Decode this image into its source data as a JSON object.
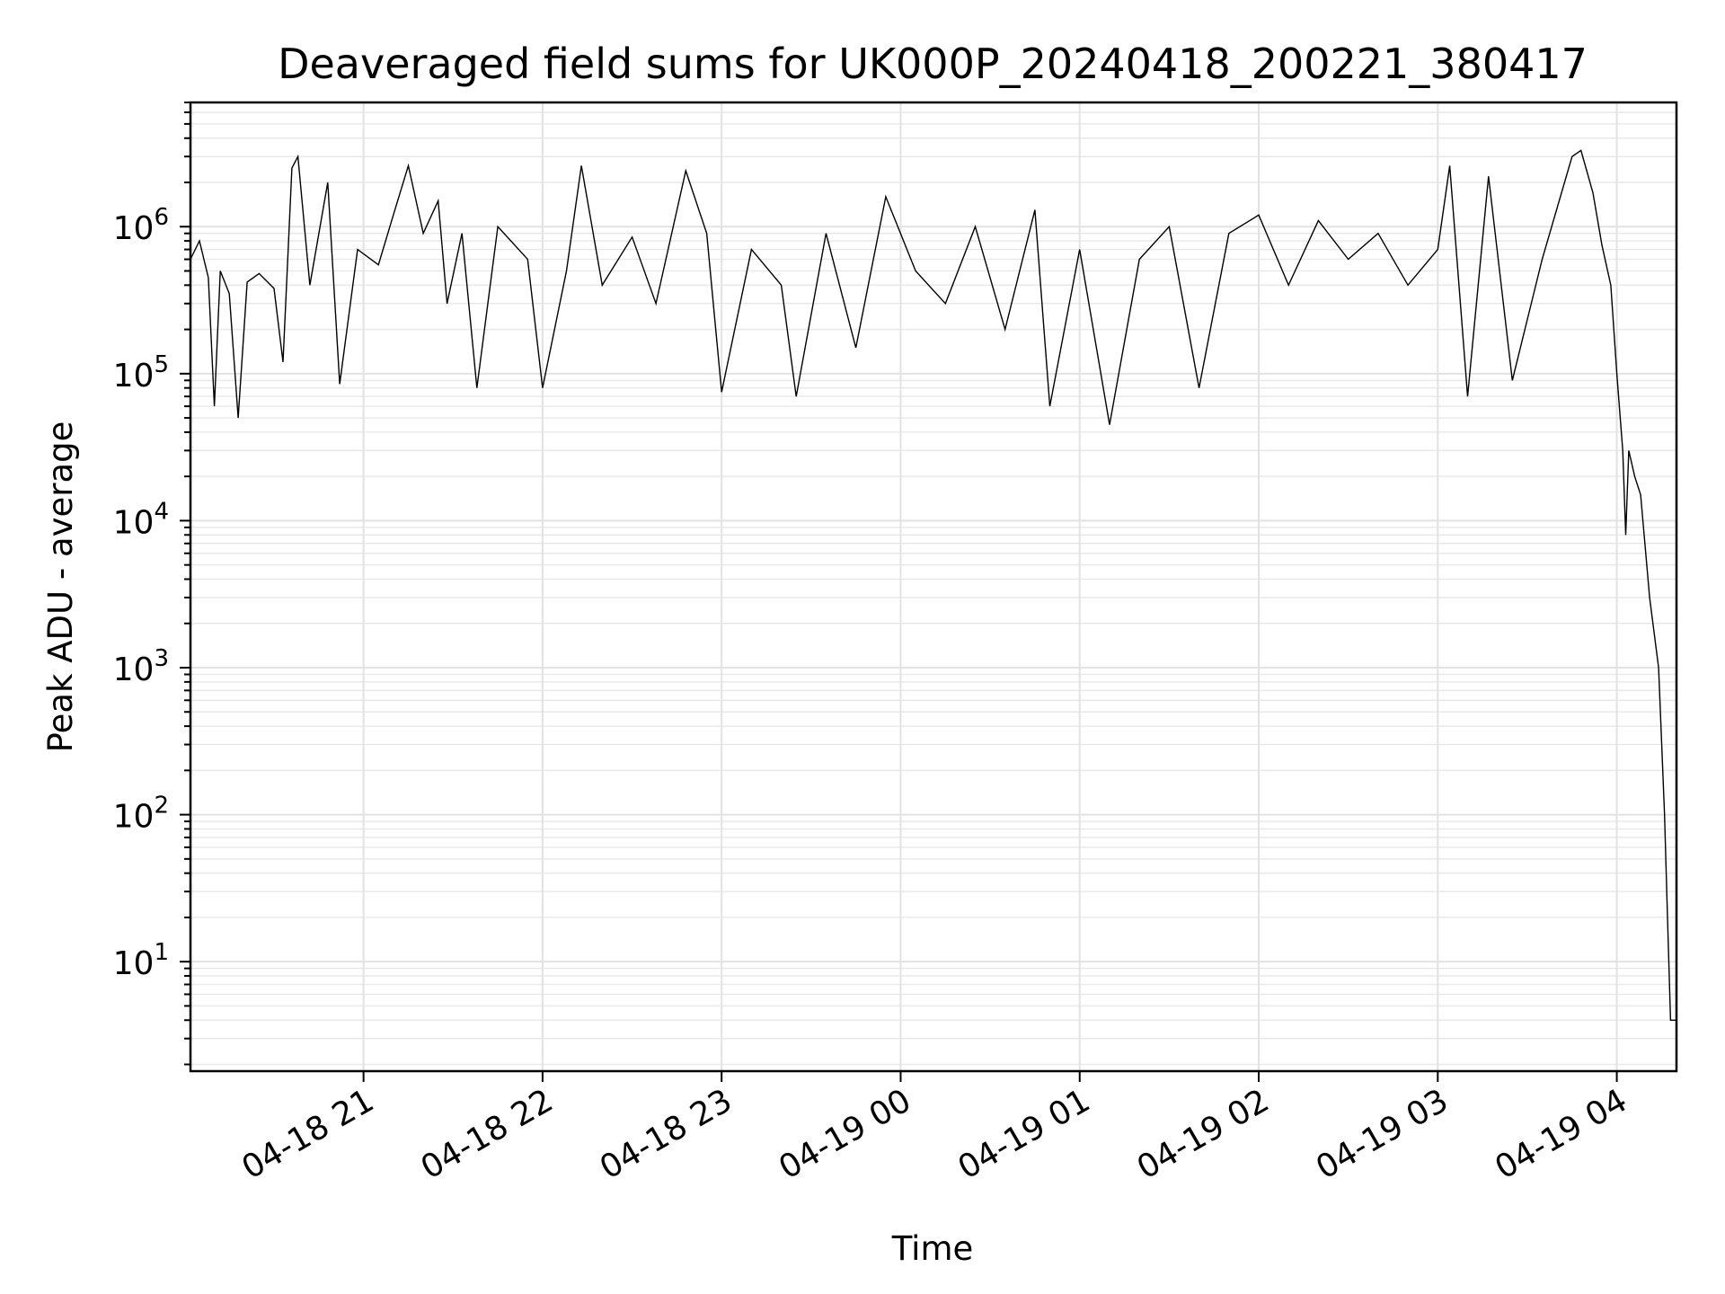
{
  "colors": {
    "line": "#000000",
    "grid": "#e2e2e2",
    "background": "#ffffff"
  },
  "chart_data": {
    "type": "line",
    "title": "Deaveraged field sums for UK000P_20240418_200221_380417",
    "xlabel": "Time",
    "ylabel": "Peak ADU - average",
    "yscale": "log",
    "grid": "both",
    "xlim": [
      "2024-04-18 20:02",
      "2024-04-19 04:20"
    ],
    "ylim": [
      1.8,
      7000000
    ],
    "x_ticks": [
      "2024-04-18 21:00",
      "2024-04-18 22:00",
      "2024-04-18 23:00",
      "2024-04-19 00:00",
      "2024-04-19 01:00",
      "2024-04-19 02:00",
      "2024-04-19 03:00",
      "2024-04-19 04:00"
    ],
    "x_tick_labels": [
      "04-18 21",
      "04-18 22",
      "04-18 23",
      "04-19 00",
      "04-19 01",
      "04-19 02",
      "04-19 03",
      "04-19 04"
    ],
    "y_tick_values": [
      10,
      100,
      1000,
      10000,
      100000,
      1000000
    ],
    "y_tick_labels": [
      {
        "base": "10",
        "exp": "1"
      },
      {
        "base": "10",
        "exp": "2"
      },
      {
        "base": "10",
        "exp": "3"
      },
      {
        "base": "10",
        "exp": "4"
      },
      {
        "base": "10",
        "exp": "5"
      },
      {
        "base": "10",
        "exp": "6"
      }
    ],
    "series": [
      {
        "points": [
          [
            "2024-04-18 20:02",
            600000
          ],
          [
            "2024-04-18 20:05",
            800000
          ],
          [
            "2024-04-18 20:08",
            450000
          ],
          [
            "2024-04-18 20:10",
            60000
          ],
          [
            "2024-04-18 20:12",
            500000
          ],
          [
            "2024-04-18 20:15",
            350000
          ],
          [
            "2024-04-18 20:18",
            50000
          ],
          [
            "2024-04-18 20:21",
            420000
          ],
          [
            "2024-04-18 20:25",
            480000
          ],
          [
            "2024-04-18 20:30",
            380000
          ],
          [
            "2024-04-18 20:33",
            120000
          ],
          [
            "2024-04-18 20:36",
            2500000
          ],
          [
            "2024-04-18 20:38",
            3000000
          ],
          [
            "2024-04-18 20:42",
            400000
          ],
          [
            "2024-04-18 20:48",
            2000000
          ],
          [
            "2024-04-18 20:52",
            85000
          ],
          [
            "2024-04-18 20:58",
            700000
          ],
          [
            "2024-04-18 21:05",
            550000
          ],
          [
            "2024-04-18 21:10",
            1200000
          ],
          [
            "2024-04-18 21:15",
            2600000
          ],
          [
            "2024-04-18 21:20",
            900000
          ],
          [
            "2024-04-18 21:25",
            1500000
          ],
          [
            "2024-04-18 21:28",
            300000
          ],
          [
            "2024-04-18 21:33",
            900000
          ],
          [
            "2024-04-18 21:38",
            80000
          ],
          [
            "2024-04-18 21:45",
            1000000
          ],
          [
            "2024-04-18 21:55",
            600000
          ],
          [
            "2024-04-18 22:00",
            80000
          ],
          [
            "2024-04-18 22:08",
            500000
          ],
          [
            "2024-04-18 22:13",
            2600000
          ],
          [
            "2024-04-18 22:20",
            400000
          ],
          [
            "2024-04-18 22:30",
            850000
          ],
          [
            "2024-04-18 22:38",
            300000
          ],
          [
            "2024-04-18 22:48",
            2400000
          ],
          [
            "2024-04-18 22:55",
            900000
          ],
          [
            "2024-04-18 23:00",
            75000
          ],
          [
            "2024-04-18 23:10",
            700000
          ],
          [
            "2024-04-18 23:20",
            400000
          ],
          [
            "2024-04-18 23:25",
            70000
          ],
          [
            "2024-04-18 23:35",
            900000
          ],
          [
            "2024-04-18 23:45",
            150000
          ],
          [
            "2024-04-18 23:55",
            1600000
          ],
          [
            "2024-04-19 00:05",
            500000
          ],
          [
            "2024-04-19 00:15",
            300000
          ],
          [
            "2024-04-19 00:25",
            1000000
          ],
          [
            "2024-04-19 00:35",
            200000
          ],
          [
            "2024-04-19 00:45",
            1300000
          ],
          [
            "2024-04-19 00:50",
            60000
          ],
          [
            "2024-04-19 01:00",
            700000
          ],
          [
            "2024-04-19 01:10",
            45000
          ],
          [
            "2024-04-19 01:20",
            600000
          ],
          [
            "2024-04-19 01:30",
            1000000
          ],
          [
            "2024-04-19 01:40",
            80000
          ],
          [
            "2024-04-19 01:50",
            900000
          ],
          [
            "2024-04-19 02:00",
            1200000
          ],
          [
            "2024-04-19 02:10",
            400000
          ],
          [
            "2024-04-19 02:20",
            1100000
          ],
          [
            "2024-04-19 02:30",
            600000
          ],
          [
            "2024-04-19 02:40",
            900000
          ],
          [
            "2024-04-19 02:50",
            400000
          ],
          [
            "2024-04-19 03:00",
            700000
          ],
          [
            "2024-04-19 03:04",
            2600000
          ],
          [
            "2024-04-19 03:10",
            70000
          ],
          [
            "2024-04-19 03:17",
            2200000
          ],
          [
            "2024-04-19 03:25",
            90000
          ],
          [
            "2024-04-19 03:35",
            600000
          ],
          [
            "2024-04-19 03:45",
            3000000
          ],
          [
            "2024-04-19 03:48",
            3300000
          ],
          [
            "2024-04-19 03:52",
            1700000
          ],
          [
            "2024-04-19 03:55",
            750000
          ],
          [
            "2024-04-19 03:58",
            400000
          ],
          [
            "2024-04-19 04:00",
            100000
          ],
          [
            "2024-04-19 04:02",
            30000
          ],
          [
            "2024-04-19 04:03",
            8000
          ],
          [
            "2024-04-19 04:04",
            30000
          ],
          [
            "2024-04-19 04:06",
            20000
          ],
          [
            "2024-04-19 04:08",
            15000
          ],
          [
            "2024-04-19 04:11",
            3000
          ],
          [
            "2024-04-19 04:14",
            1000
          ],
          [
            "2024-04-19 04:16",
            100
          ],
          [
            "2024-04-19 04:17",
            20
          ],
          [
            "2024-04-19 04:18",
            4
          ],
          [
            "2024-04-19 04:19",
            4
          ],
          [
            "2024-04-19 04:20",
            4
          ]
        ]
      }
    ]
  }
}
